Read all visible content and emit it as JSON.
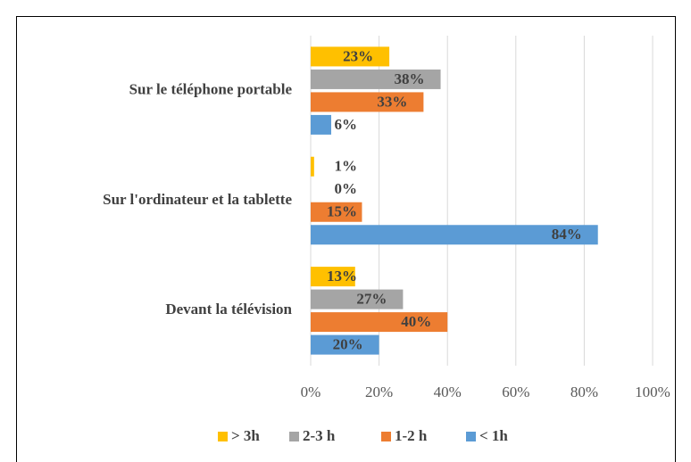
{
  "chart_data": {
    "type": "barh",
    "categories": [
      "Sur le téléphone portable",
      "Sur l'ordinateur et la tablette",
      "Devant la télévision"
    ],
    "series": [
      {
        "name": "> 3h",
        "color": "#ffc000",
        "values": [
          23,
          1,
          13
        ],
        "value_labels": [
          "23%",
          "1%",
          "13%"
        ]
      },
      {
        "name": "2-3 h",
        "color": "#a5a5a5",
        "values": [
          38,
          0,
          27
        ],
        "value_labels": [
          "38%",
          "0%",
          "27%"
        ]
      },
      {
        "name": "1-2 h",
        "color": "#ed7d31",
        "values": [
          33,
          15,
          40
        ],
        "value_labels": [
          "33%",
          "15%",
          "40%"
        ]
      },
      {
        "name": "< 1h",
        "color": "#5b9bd5",
        "values": [
          6,
          84,
          20
        ],
        "value_labels": [
          "6%",
          "84%",
          "20%"
        ]
      }
    ],
    "xlim": [
      0,
      100
    ],
    "xticks": [
      {
        "value": 0,
        "label": "0%"
      },
      {
        "value": 20,
        "label": "20%"
      },
      {
        "value": 40,
        "label": "40%"
      },
      {
        "value": 60,
        "label": "60%"
      },
      {
        "value": 80,
        "label": "80%"
      },
      {
        "value": 100,
        "label": "100%"
      }
    ],
    "grid": true,
    "legend": "bottom"
  }
}
